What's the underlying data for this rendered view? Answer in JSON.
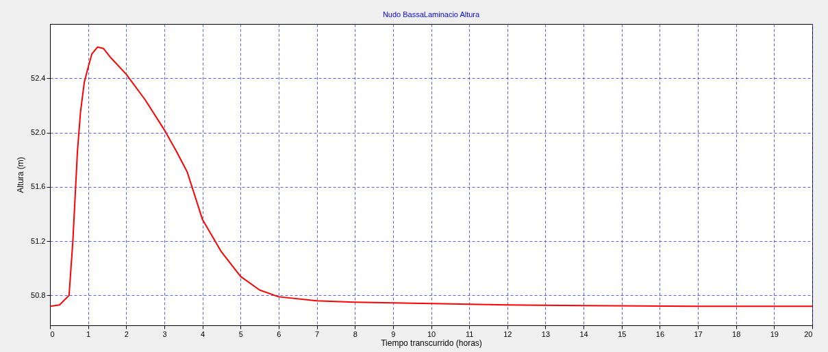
{
  "chart_data": {
    "type": "line",
    "title": "Nudo BassaLaminacio Altura",
    "xlabel": "Tiempo transcurrido (horas)",
    "ylabel": "Altura (m)",
    "x": [
      0,
      0.25,
      0.5,
      0.6,
      0.72,
      0.8,
      0.9,
      1.0,
      1.1,
      1.25,
      1.4,
      1.6,
      2.0,
      2.5,
      3.0,
      3.3,
      3.6,
      4.0,
      4.5,
      5.0,
      5.5,
      6,
      7,
      8,
      10,
      12,
      14,
      17,
      20
    ],
    "series": [
      {
        "color": "#ff0000",
        "values": [
          50.72,
          50.73,
          50.8,
          51.2,
          51.86,
          52.15,
          52.37,
          52.48,
          52.58,
          52.63,
          52.62,
          52.55,
          52.43,
          52.24,
          52.02,
          51.87,
          51.71,
          51.36,
          51.12,
          50.94,
          50.84,
          50.79,
          50.76,
          50.75,
          50.74,
          50.73,
          50.725,
          50.72,
          50.72
        ]
      }
    ],
    "xlim": [
      0,
      20
    ],
    "xticks": [
      0,
      1,
      2,
      3,
      4,
      5,
      6,
      7,
      8,
      9,
      10,
      11,
      12,
      13,
      14,
      15,
      16,
      17,
      18,
      19,
      20
    ],
    "ylim": [
      50.58,
      52.8
    ],
    "yticks": [
      50.8,
      51.2,
      51.6,
      {
        "value": 52,
        "label": "52.0"
      },
      52.4
    ],
    "grid": true,
    "line_style": "solid",
    "marker": "none"
  }
}
